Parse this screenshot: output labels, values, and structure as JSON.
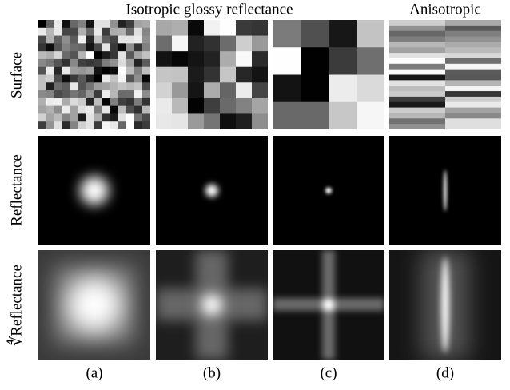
{
  "header": {
    "titles": [
      "Isotropic glossy reflectance",
      "Anisotropic"
    ]
  },
  "row_labels": [
    "Surface",
    "Reflectance",
    "∜Reflectance"
  ],
  "column_labels": [
    "(a)",
    "(b)",
    "(c)",
    "(d)"
  ]
}
